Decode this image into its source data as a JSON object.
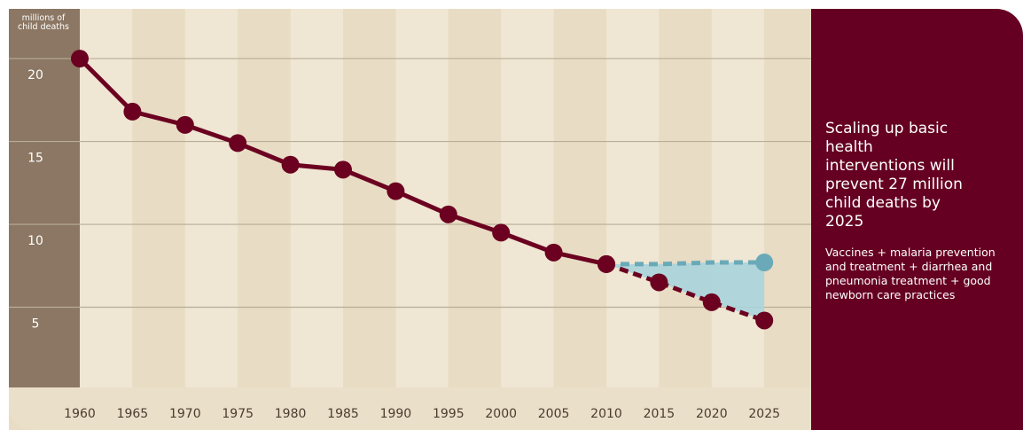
{
  "chart_data": {
    "type": "line",
    "y_axis_label": "millions of child deaths",
    "categories": [
      "1960",
      "1965",
      "1970",
      "1975",
      "1980",
      "1985",
      "1990",
      "1995",
      "2000",
      "2005",
      "2010",
      "2015",
      "2020",
      "2025"
    ],
    "series": [
      {
        "color": "#6b0020",
        "dashed": false,
        "markers": "all",
        "values": [
          20.0,
          16.8,
          16.0,
          14.9,
          13.6,
          13.3,
          12.0,
          10.6,
          9.5,
          8.3,
          7.6,
          null,
          null,
          null
        ]
      },
      {
        "color": "#6b0020",
        "dashed": true,
        "markers": "all",
        "values": [
          null,
          null,
          null,
          null,
          null,
          null,
          null,
          null,
          null,
          null,
          7.6,
          6.5,
          5.3,
          4.2
        ]
      },
      {
        "color": "#6aaab8",
        "dashed": true,
        "markers": "last",
        "values": [
          null,
          null,
          null,
          null,
          null,
          null,
          null,
          null,
          null,
          null,
          7.6,
          7.6,
          7.7,
          7.7
        ]
      }
    ],
    "shade": {
      "between": [
        1,
        2
      ],
      "color": "#a9d3dc"
    },
    "ylim": [
      0,
      23
    ],
    "yticks": [
      5,
      10,
      15,
      20
    ],
    "grid": true,
    "panel": {
      "heading": "Scaling up basic health interventions will prevent 27 million child deaths by 2025",
      "body": "Vaccines + malaria prevention and treatment  + diarrhea and pneumonia treatment + good newborn care practices"
    }
  }
}
